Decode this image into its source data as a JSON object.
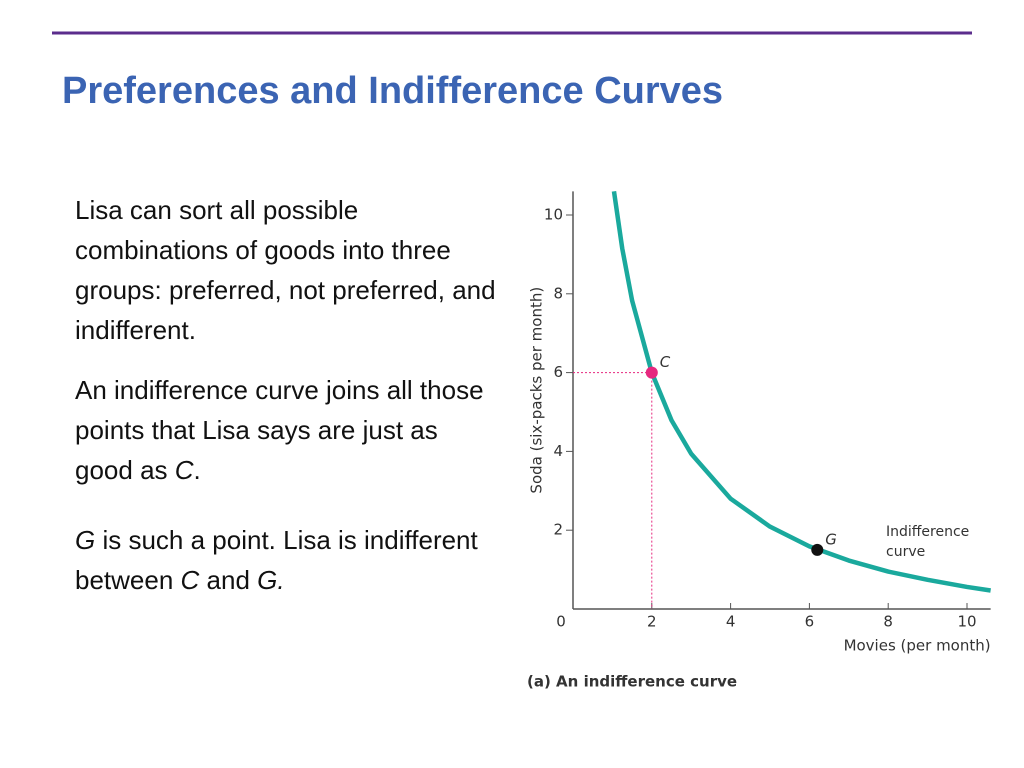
{
  "slide": {
    "title": "Preferences and Indifference Curves",
    "paragraphs": [
      [
        {
          "text": "Lisa can sort all possible combinations of goods into three groups: preferred, not preferred, and indifferent."
        }
      ],
      [
        {
          "text": "An indifference curve joins all those points that Lisa says are just as good as "
        },
        {
          "text": "C",
          "italic": true
        },
        {
          "text": "."
        }
      ],
      [
        {
          "text": "G",
          "italic": true
        },
        {
          "text": " is such a point. Lisa is indifferent between "
        },
        {
          "text": "C",
          "italic": true
        },
        {
          "text": " and "
        },
        {
          "text": "G.",
          "italic": true
        }
      ]
    ]
  },
  "chart_data": {
    "type": "line",
    "caption": "(a) An indifference curve",
    "x_label": "Movies (per month)",
    "y_label": "Soda (six-packs per month)",
    "xlim": [
      0,
      10.6
    ],
    "ylim": [
      0,
      10.6
    ],
    "xticks": [
      0,
      2,
      4,
      6,
      8,
      10
    ],
    "yticks": [
      2,
      4,
      6,
      8,
      10
    ],
    "series": [
      {
        "name": "Indifference curve",
        "color": "#1aa99d",
        "x": [
          1.04,
          1.25,
          1.5,
          2,
          2.5,
          3,
          4,
          5,
          6,
          7,
          8,
          9,
          10,
          10.6
        ],
        "values": [
          10.6,
          9.15,
          7.83,
          6.0,
          4.79,
          3.94,
          2.8,
          2.09,
          1.59,
          1.23,
          0.95,
          0.74,
          0.56,
          0.47
        ]
      }
    ],
    "points": [
      {
        "name": "C",
        "color": "#e6287f",
        "x": 2,
        "y": 6,
        "guides": true
      },
      {
        "name": "G",
        "color": "#111111",
        "x": 6.2,
        "y": 1.5
      }
    ]
  }
}
